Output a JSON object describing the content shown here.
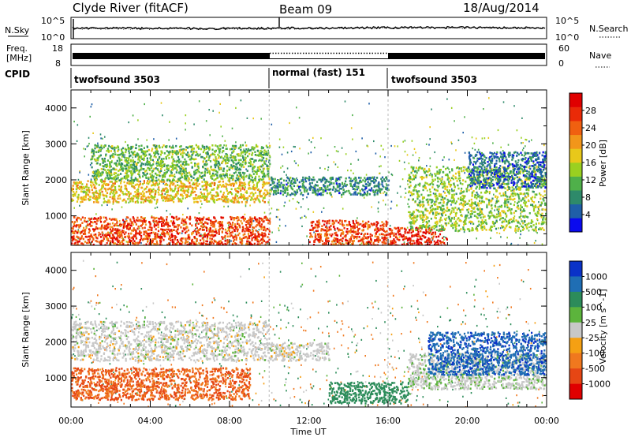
{
  "header": {
    "station": "Clyde River (fitACF)",
    "beam": "Beam 09",
    "date": "18/Aug/2014"
  },
  "side_labels": {
    "nsky": "N.Sky",
    "nsearch": "N.Search",
    "freq_top": "Freq.",
    "freq_unit": "[MHz]",
    "nave": "Nave",
    "cpid": "CPID"
  },
  "noise_axis": {
    "left_top": "10^5",
    "left_bottom": "10^0",
    "right_top": "10^5",
    "right_bottom": "10^0"
  },
  "freq_axis": {
    "left_top": "18",
    "left_bottom": "8",
    "right_top": "60",
    "right_bottom": "0"
  },
  "cpid_segments": [
    {
      "label": "twofsound 3503",
      "start_hour": 0,
      "end_hour": 10
    },
    {
      "label": "normal (fast) 151",
      "start_hour": 10,
      "end_hour": 16
    },
    {
      "label": "twofsound 3503",
      "start_hour": 16,
      "end_hour": 24
    }
  ],
  "chart_data": [
    {
      "type": "heatmap",
      "panel": "power",
      "ylabel": "Slant Range [km]",
      "xlabel": "Time UT",
      "x_range_hours": [
        0,
        24
      ],
      "x_ticks": [
        "00:00",
        "04:00",
        "08:00",
        "12:00",
        "16:00",
        "20:00",
        "00:00"
      ],
      "ylim": [
        180,
        4500
      ],
      "y_ticks": [
        1000,
        2000,
        3000,
        4000
      ],
      "colorbar": {
        "label": "Power [dB]",
        "ticks": [
          "4",
          "8",
          "12",
          "16",
          "20",
          "24",
          "28"
        ],
        "colors": [
          "#0a0aee",
          "#1f5fa8",
          "#2e8a6a",
          "#4fb04a",
          "#9ad020",
          "#e8c81a",
          "#f2961a",
          "#f06010",
          "#ea2a08",
          "#e00000"
        ]
      },
      "features": [
        {
          "time_start": 0,
          "time_end": 10,
          "range_start": 200,
          "range_end": 1000,
          "level": 26
        },
        {
          "time_start": 0,
          "time_end": 10,
          "range_start": 1400,
          "range_end": 2000,
          "level": 18
        },
        {
          "time_start": 1,
          "time_end": 10,
          "range_start": 2000,
          "range_end": 3000,
          "level": 12
        },
        {
          "time_start": 10,
          "time_end": 16,
          "range_start": 1600,
          "range_end": 2100,
          "level": 8
        },
        {
          "time_start": 12,
          "time_end": 16,
          "range_start": 200,
          "range_end": 900,
          "level": 26
        },
        {
          "time_start": 16,
          "time_end": 19,
          "range_start": 200,
          "range_end": 700,
          "level": 28
        },
        {
          "time_start": 17,
          "time_end": 24,
          "range_start": 600,
          "range_end": 2400,
          "level": 14
        },
        {
          "time_start": 20,
          "time_end": 24,
          "range_start": 1800,
          "range_end": 2800,
          "level": 6
        }
      ]
    },
    {
      "type": "heatmap",
      "panel": "velocity",
      "ylabel": "Slant Range [km]",
      "xlabel": "Time UT",
      "x_range_hours": [
        0,
        24
      ],
      "x_ticks": [
        "00:00",
        "04:00",
        "08:00",
        "12:00",
        "16:00",
        "20:00",
        "00:00"
      ],
      "ylim": [
        180,
        4500
      ],
      "y_ticks": [
        1000,
        2000,
        3000,
        4000
      ],
      "colorbar": {
        "label": "Velocity [m s^-1]",
        "ticks": [
          "1000",
          "500",
          "100",
          "25",
          "-25",
          "-100",
          "-500",
          "-1000"
        ],
        "colors": [
          "#0a32c8",
          "#1f6eb4",
          "#2c8c5a",
          "#5cb43c",
          "#c8c8c8",
          "#f5a013",
          "#f0781e",
          "#e64614",
          "#e00000"
        ]
      },
      "features": [
        {
          "time_start": 0,
          "time_end": 9,
          "range_start": 400,
          "range_end": 1300,
          "level": -300
        },
        {
          "time_start": 0,
          "time_end": 10,
          "range_start": 1500,
          "range_end": 2600,
          "level": 0
        },
        {
          "time_start": 10,
          "time_end": 13,
          "range_start": 1500,
          "range_end": 2000,
          "level": 0
        },
        {
          "time_start": 13,
          "time_end": 17,
          "range_start": 300,
          "range_end": 900,
          "level": 200
        },
        {
          "time_start": 17,
          "time_end": 24,
          "range_start": 700,
          "range_end": 1700,
          "level": 10
        },
        {
          "time_start": 18,
          "time_end": 24,
          "range_start": 1100,
          "range_end": 2300,
          "level": 700
        }
      ]
    }
  ]
}
